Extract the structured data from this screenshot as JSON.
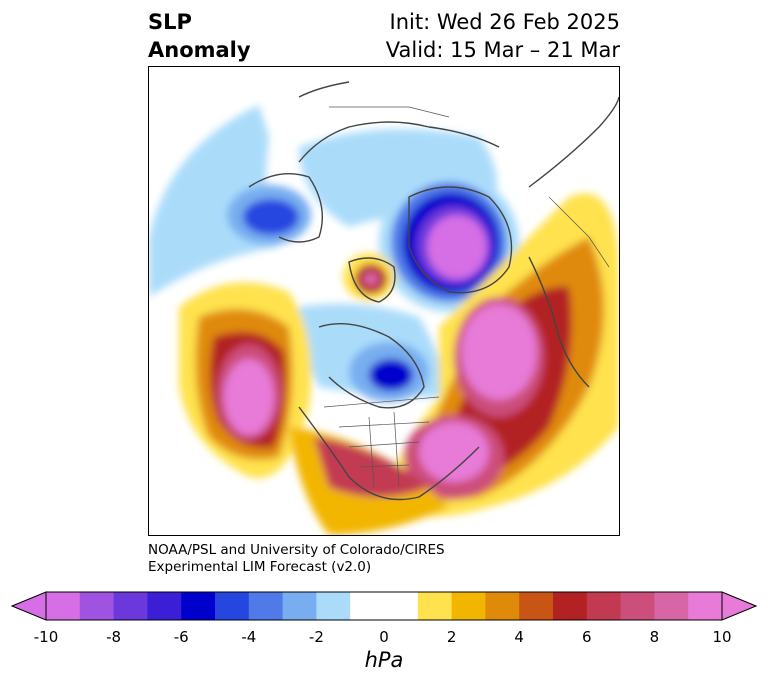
{
  "title": {
    "left_line1": "SLP",
    "left_line2": "Anomaly",
    "right_line1": "Init: Wed 26 Feb 2025",
    "right_line2": "Valid: 15 Mar – 21 Mar"
  },
  "credit": {
    "line1": "NOAA/PSL and University of Colorado/CIRES",
    "line2": "Experimental LIM Forecast (v2.0)"
  },
  "colorbar": {
    "unit": "hPa",
    "ticks": [
      "-10",
      "-8",
      "-6",
      "-4",
      "-2",
      "0",
      "2",
      "4",
      "6",
      "8",
      "10"
    ],
    "colors": [
      "#d66ee6",
      "#a052e0",
      "#6b38dc",
      "#3a1fd6",
      "#0000cc",
      "#2646e0",
      "#4f7ae8",
      "#78aef0",
      "#aadcfa",
      "#ffffff",
      "#ffffff",
      "#ffe24d",
      "#f2b600",
      "#e08a0a",
      "#c85514",
      "#b22222",
      "#c23a52",
      "#cc4e7a",
      "#d866a6",
      "#e87ad8"
    ]
  },
  "colors": {
    "strong_negative": "#d66ee6",
    "negative": "#0000cc",
    "weak_negative": "#aadcfa",
    "weak_positive": "#ffe24d",
    "positive": "#b22222",
    "strong_positive": "#e87ad8"
  }
}
